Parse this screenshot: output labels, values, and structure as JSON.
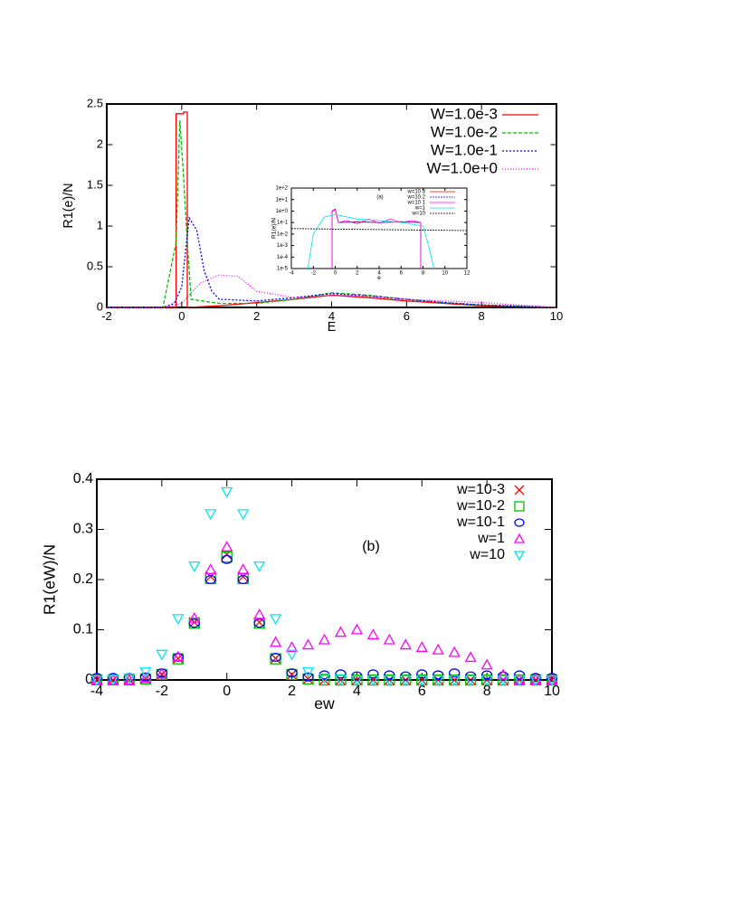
{
  "chart_data": [
    {
      "type": "line",
      "xlabel": "E",
      "ylabel": "R1(e)/N",
      "xlim": [
        -2,
        10
      ],
      "ylim": [
        0,
        2.5
      ],
      "xticks": [
        -2,
        0,
        2,
        4,
        6,
        8,
        10
      ],
      "yticks": [
        0,
        0.5,
        1,
        1.5,
        2,
        2.5
      ],
      "grid": false,
      "legend": "upper right",
      "series": [
        {
          "name": "W=1.0e-3",
          "color": "#ff0000",
          "dash": "none",
          "x": [
            -2,
            -0.5,
            -0.15,
            -0.15,
            0.05,
            0.05,
            0.15,
            0.15,
            1,
            3,
            4,
            5,
            6,
            7,
            8,
            10
          ],
          "values": [
            0,
            0,
            0,
            2.38,
            2.38,
            2.4,
            2.4,
            0,
            0.02,
            0.1,
            0.15,
            0.12,
            0.08,
            0.05,
            0.02,
            0
          ]
        },
        {
          "name": "W=1.0e-2",
          "color": "#00c000",
          "dash": "4,2",
          "x": [
            -2,
            -0.5,
            -0.15,
            -0.05,
            0.05,
            0.15,
            0.25,
            1,
            2,
            3,
            4,
            5,
            6,
            7,
            8,
            10
          ],
          "values": [
            0,
            0,
            0.8,
            2.3,
            1.6,
            0.8,
            0.1,
            0.05,
            0.05,
            0.1,
            0.18,
            0.15,
            0.1,
            0.06,
            0.03,
            0
          ]
        },
        {
          "name": "W=1.0e-1",
          "color": "#0000ff",
          "dash": "2,2",
          "x": [
            -2,
            -0.5,
            -0.2,
            0,
            0.2,
            0.4,
            0.6,
            0.8,
            1,
            2,
            3,
            4,
            5,
            6,
            7,
            8,
            10
          ],
          "values": [
            0,
            0,
            0.05,
            0.25,
            1.1,
            0.95,
            0.45,
            0.2,
            0.1,
            0.08,
            0.12,
            0.17,
            0.14,
            0.1,
            0.06,
            0.03,
            0
          ]
        },
        {
          "name": "W=1.0e+0",
          "color": "#ff00ff",
          "dash": "1,2",
          "x": [
            -2,
            -0.5,
            0,
            0.5,
            1,
            1.5,
            2,
            3,
            4,
            5,
            6,
            7,
            8,
            9,
            10
          ],
          "values": [
            0,
            0,
            0.05,
            0.3,
            0.4,
            0.38,
            0.2,
            0.12,
            0.15,
            0.14,
            0.1,
            0.08,
            0.06,
            0.03,
            0
          ]
        }
      ]
    },
    {
      "type": "line",
      "title": "(a)",
      "xlabel": "e",
      "ylabel": "R1(e)/N",
      "log_y": true,
      "xlim": [
        -4,
        12
      ],
      "ylim": [
        1e-05,
        100
      ],
      "xticks": [
        -4,
        -2,
        0,
        2,
        4,
        6,
        8,
        10,
        12
      ],
      "yticks": [
        {
          "value": 1e-05,
          "label": "1e-5"
        },
        {
          "value": 0.0001,
          "label": "1e-4"
        },
        {
          "value": 0.001,
          "label": "1e-3"
        },
        {
          "value": 0.01,
          "label": "1e-2"
        },
        {
          "value": 0.1,
          "label": "1e-1"
        },
        {
          "value": 1,
          "label": "1e+0"
        },
        {
          "value": 10,
          "label": "1e+1"
        },
        {
          "value": 100,
          "label": "1e+2"
        }
      ],
      "grid": false,
      "legend": "upper right",
      "series": [
        {
          "name": "w=10 3",
          "color": "#ff0000",
          "dash": "none",
          "x": [
            -0.3,
            -0.3,
            0,
            0.3,
            2,
            4,
            6,
            7.8,
            7.8
          ],
          "values": [
            1e-05,
            1,
            1.5,
            0.1,
            0.12,
            0.1,
            0.12,
            0.1,
            1e-05
          ]
        },
        {
          "name": "w=10 2",
          "color": "#0000ff",
          "dash": "2,1",
          "x": [
            -0.3,
            -0.3,
            0,
            0.3,
            2,
            4,
            6,
            7.8,
            7.8
          ],
          "values": [
            1e-05,
            0.9,
            1.4,
            0.1,
            0.11,
            0.1,
            0.11,
            0.1,
            1e-05
          ]
        },
        {
          "name": "w=10 1",
          "color": "#ff00ff",
          "dash": "none",
          "x": [
            -0.3,
            -0.3,
            0,
            0.3,
            1,
            2,
            3,
            4,
            5,
            6,
            7,
            7.8,
            7.8
          ],
          "values": [
            1e-05,
            1,
            1.3,
            0.1,
            0.15,
            0.08,
            0.2,
            0.09,
            0.2,
            0.1,
            0.15,
            0.1,
            1e-05
          ]
        },
        {
          "name": "w=1",
          "color": "#00e5ee",
          "dash": "none",
          "x": [
            -2.5,
            -2,
            -1,
            0,
            2,
            4,
            6,
            8,
            8.5,
            9
          ],
          "values": [
            1e-05,
            0.01,
            0.3,
            0.5,
            0.2,
            0.15,
            0.1,
            0.05,
            0.001,
            1e-05
          ]
        },
        {
          "name": "w=10",
          "color": "#000000",
          "dash": "2,1",
          "x": [
            -4,
            12
          ],
          "values": [
            0.03,
            0.02
          ]
        }
      ]
    },
    {
      "type": "scatter",
      "annotation": "(b)",
      "xlabel": "ew",
      "ylabel": "R1(eW)/N",
      "xlim": [
        -4,
        10
      ],
      "ylim": [
        0,
        0.4
      ],
      "xticks": [
        -4,
        -2,
        0,
        2,
        4,
        6,
        8,
        10
      ],
      "yticks": [
        0,
        0.1,
        0.2,
        0.3,
        0.4
      ],
      "grid": false,
      "legend": "upper right",
      "x": [
        -4,
        -3.5,
        -3,
        -2.5,
        -2,
        -1.5,
        -1,
        -0.5,
        0,
        0.5,
        1,
        1.5,
        2,
        2.5,
        3,
        3.5,
        4,
        4.5,
        5,
        5.5,
        6,
        6.5,
        7,
        7.5,
        8,
        8.5,
        9,
        9.5,
        10
      ],
      "series": [
        {
          "name": "w=10-3",
          "color": "#ff0000",
          "marker": "x",
          "values": [
            0,
            0,
            0,
            0.002,
            0.011,
            0.043,
            0.115,
            0.206,
            0.25,
            0.206,
            0.115,
            0.043,
            0.011,
            0.002,
            0,
            0,
            0,
            0,
            0,
            0,
            0,
            0,
            0,
            0,
            0,
            0,
            0,
            0,
            0
          ]
        },
        {
          "name": "w=10-2",
          "color": "#00c000",
          "marker": "square",
          "values": [
            0,
            0,
            0,
            0.002,
            0.011,
            0.042,
            0.113,
            0.202,
            0.245,
            0.202,
            0.113,
            0.042,
            0.011,
            0.002,
            0,
            0,
            0,
            0,
            0,
            0,
            0,
            0,
            0,
            0,
            0,
            0,
            0,
            0,
            0
          ]
        },
        {
          "name": "w=10-1",
          "color": "#0000ff",
          "marker": "circle",
          "values": [
            0.005,
            0.005,
            0.005,
            0.006,
            0.014,
            0.045,
            0.113,
            0.2,
            0.24,
            0.2,
            0.113,
            0.045,
            0.014,
            0.006,
            0.01,
            0.012,
            0.008,
            0.012,
            0.01,
            0.008,
            0.012,
            0.01,
            0.014,
            0.008,
            0.01,
            0.008,
            0.01,
            0.005,
            0.005
          ]
        },
        {
          "name": "w=1",
          "color": "#ff00ff",
          "marker": "triangle-up",
          "values": [
            0,
            0,
            0,
            0.003,
            0.012,
            0.046,
            0.123,
            0.22,
            0.265,
            0.22,
            0.13,
            0.075,
            0.065,
            0.07,
            0.08,
            0.095,
            0.1,
            0.09,
            0.08,
            0.07,
            0.065,
            0.06,
            0.055,
            0.045,
            0.03,
            0.01,
            0,
            0,
            0
          ]
        },
        {
          "name": "w=10",
          "color": "#00e5ee",
          "marker": "triangle-down",
          "values": [
            0,
            0.001,
            0.004,
            0.016,
            0.051,
            0.122,
            0.227,
            0.331,
            0.375,
            0.331,
            0.227,
            0.122,
            0.051,
            0.016,
            0.004,
            0.001,
            0,
            0,
            0,
            0,
            0,
            0,
            0,
            0,
            0,
            0,
            0,
            0,
            0
          ]
        }
      ]
    }
  ]
}
